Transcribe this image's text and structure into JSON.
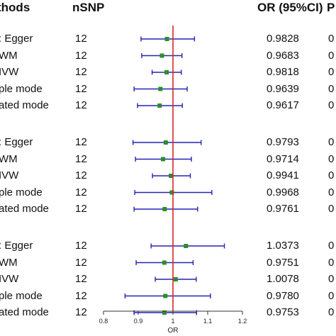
{
  "header": {
    "method": "thods",
    "nsnp": "nSNP",
    "or": "OR (95%CI)",
    "p": "P"
  },
  "chart_data": {
    "type": "forest",
    "title": "",
    "xlabel": "OR",
    "xlim": [
      0.8,
      1.2
    ],
    "xticks": [
      "0.8",
      "0.9",
      "1",
      "1.1",
      "1.2"
    ],
    "reference_line": 1.0,
    "groups": [
      {
        "rows": [
          {
            "method": ": Egger",
            "nsnp": "12",
            "or_text": "0.9828",
            "p_text": "0",
            "or": 0.9828,
            "lo": 0.908,
            "hi": 1.062
          },
          {
            "method": "WM",
            "nsnp": "12",
            "or_text": "0.9683",
            "p_text": "0",
            "or": 0.9683,
            "lo": 0.91,
            "hi": 1.026
          },
          {
            "method": "IVW",
            "nsnp": "12",
            "or_text": "0.9818",
            "p_text": "0",
            "or": 0.9818,
            "lo": 0.94,
            "hi": 1.024
          },
          {
            "method": "ple mode",
            "nsnp": "12",
            "or_text": "0.9639",
            "p_text": "0",
            "or": 0.9639,
            "lo": 0.888,
            "hi": 1.041
          },
          {
            "method": "ated mode",
            "nsnp": "12",
            "or_text": "0.9617",
            "p_text": "0",
            "or": 0.9617,
            "lo": 0.898,
            "hi": 1.027
          }
        ]
      },
      {
        "rows": [
          {
            "method": ": Egger",
            "nsnp": "12",
            "or_text": "0.9793",
            "p_text": "0",
            "or": 0.9793,
            "lo": 0.885,
            "hi": 1.081
          },
          {
            "method": "WM",
            "nsnp": "12",
            "or_text": "0.9714",
            "p_text": "0",
            "or": 0.9714,
            "lo": 0.892,
            "hi": 1.053
          },
          {
            "method": "IVW",
            "nsnp": "12",
            "or_text": "0.9941",
            "p_text": "0",
            "or": 0.9941,
            "lo": 0.941,
            "hi": 1.05
          },
          {
            "method": "ple mode",
            "nsnp": "12",
            "or_text": "0.9968",
            "p_text": "0",
            "or": 0.9968,
            "lo": 0.89,
            "hi": 1.112
          },
          {
            "method": "ated mode",
            "nsnp": "12",
            "or_text": "0.9761",
            "p_text": "0",
            "or": 0.9761,
            "lo": 0.888,
            "hi": 1.071
          }
        ]
      },
      {
        "rows": [
          {
            "method": ": Egger",
            "nsnp": "12",
            "or_text": "1.0373",
            "p_text": "0",
            "or": 1.0373,
            "lo": 0.937,
            "hi": 1.148
          },
          {
            "method": "WM",
            "nsnp": "12",
            "or_text": "0.9751",
            "p_text": "0",
            "or": 0.9751,
            "lo": 0.894,
            "hi": 1.058
          },
          {
            "method": "IVW",
            "nsnp": "12",
            "or_text": "1.0078",
            "p_text": "0",
            "or": 1.0078,
            "lo": 0.949,
            "hi": 1.067
          },
          {
            "method": "ple mode",
            "nsnp": "12",
            "or_text": "0.9780",
            "p_text": "0",
            "or": 0.978,
            "lo": 0.862,
            "hi": 1.108
          },
          {
            "method": "ated mode",
            "nsnp": "12",
            "or_text": "0.9753",
            "p_text": "0",
            "or": 0.9753,
            "lo": 0.888,
            "hi": 1.068
          }
        ]
      }
    ],
    "colors": {
      "ci_line": "#2323b4",
      "point": "#2e8b2e",
      "reference": "#d62828",
      "axis": "#333333"
    }
  }
}
